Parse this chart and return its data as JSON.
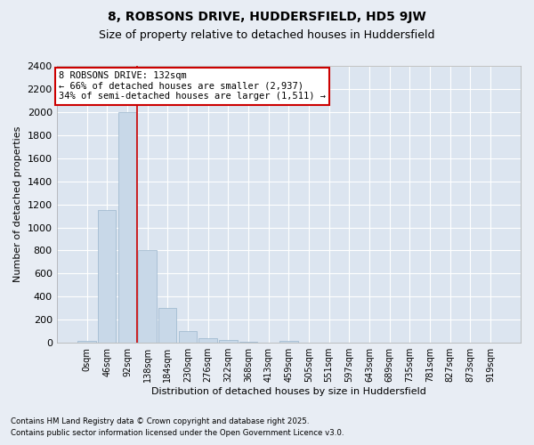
{
  "title": "8, ROBSONS DRIVE, HUDDERSFIELD, HD5 9JW",
  "subtitle": "Size of property relative to detached houses in Huddersfield",
  "xlabel": "Distribution of detached houses by size in Huddersfield",
  "ylabel": "Number of detached properties",
  "bar_color": "#c8d8e8",
  "bar_edge_color": "#9ab5cc",
  "categories": [
    "0sqm",
    "46sqm",
    "92sqm",
    "138sqm",
    "184sqm",
    "230sqm",
    "276sqm",
    "322sqm",
    "368sqm",
    "413sqm",
    "459sqm",
    "505sqm",
    "551sqm",
    "597sqm",
    "643sqm",
    "689sqm",
    "735sqm",
    "781sqm",
    "827sqm",
    "873sqm",
    "919sqm"
  ],
  "values": [
    20,
    1150,
    2000,
    800,
    300,
    100,
    40,
    25,
    10,
    5,
    15,
    0,
    0,
    0,
    0,
    0,
    0,
    0,
    0,
    0,
    0
  ],
  "ylim": [
    0,
    2400
  ],
  "yticks": [
    0,
    200,
    400,
    600,
    800,
    1000,
    1200,
    1400,
    1600,
    1800,
    2000,
    2200,
    2400
  ],
  "vline_x": 2.5,
  "vline_color": "#cc0000",
  "annotation_text": "8 ROBSONS DRIVE: 132sqm\n← 66% of detached houses are smaller (2,937)\n34% of semi-detached houses are larger (1,511) →",
  "annotation_box_color": "#ffffff",
  "annotation_box_edge": "#cc0000",
  "footer_line1": "Contains HM Land Registry data © Crown copyright and database right 2025.",
  "footer_line2": "Contains public sector information licensed under the Open Government Licence v3.0.",
  "background_color": "#e8edf4",
  "plot_bg_color": "#dce5f0",
  "grid_color": "#ffffff",
  "title_fontsize": 10,
  "subtitle_fontsize": 9,
  "tick_fontsize": 7,
  "ylabel_fontsize": 8,
  "xlabel_fontsize": 8,
  "annotation_fontsize": 7.5
}
